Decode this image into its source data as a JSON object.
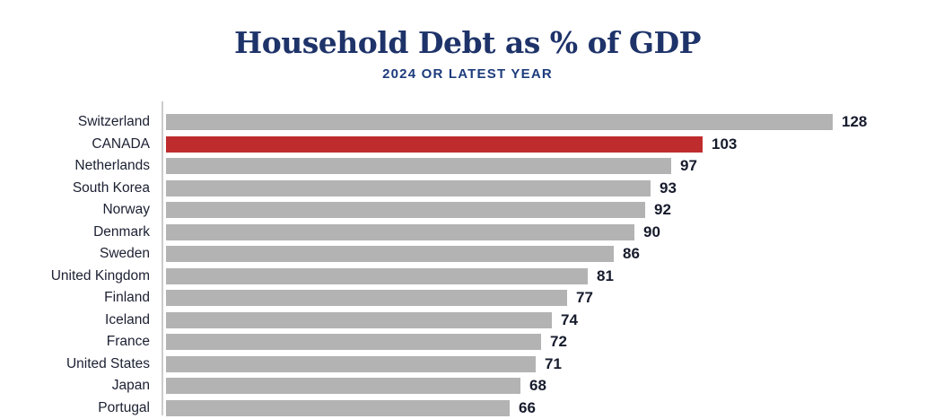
{
  "header": {
    "title": "Household Debt as % of GDP",
    "subtitle": "2024 OR LATEST YEAR"
  },
  "chart_data": {
    "type": "bar",
    "orientation": "horizontal",
    "title": "Household Debt as % of GDP",
    "subtitle": "2024 OR LATEST YEAR",
    "xlabel": "",
    "ylabel": "",
    "xlim": [
      0,
      128
    ],
    "grid": false,
    "legend": "none",
    "value_labels_shown": true,
    "categories": [
      "Switzerland",
      "CANADA",
      "Netherlands",
      "South Korea",
      "Norway",
      "Denmark",
      "Sweden",
      "United Kingdom",
      "Finland",
      "Iceland",
      "France",
      "United States",
      "Japan",
      "Portugal"
    ],
    "values": [
      128,
      103,
      97,
      93,
      92,
      90,
      86,
      81,
      77,
      74,
      72,
      71,
      68,
      66
    ],
    "highlight_category": "CANADA",
    "colors": {
      "bar": "#b3b3b3",
      "highlight": "#bf2c2e",
      "axis_line": "#cccccc",
      "title_text": "#1e3369",
      "subtitle_text": "#1d3b7c",
      "label_text": "#1b2032",
      "value_text": "#161b2c",
      "background": "#ffffff"
    }
  }
}
